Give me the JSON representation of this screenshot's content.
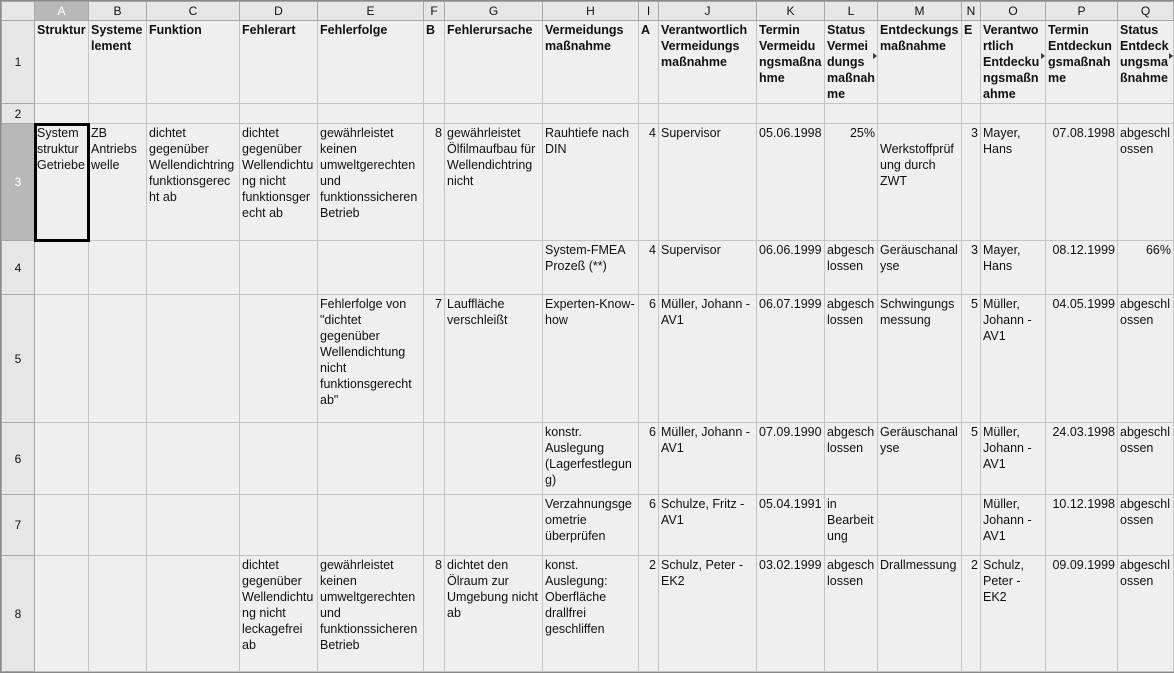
{
  "columns": [
    "A",
    "B",
    "C",
    "D",
    "E",
    "F",
    "G",
    "H",
    "I",
    "J",
    "K",
    "L",
    "M",
    "N",
    "O",
    "P",
    "Q"
  ],
  "row_numbers": [
    "1",
    "2",
    "3",
    "4",
    "5",
    "6",
    "7",
    "8"
  ],
  "selected_cell": "A3",
  "rows": [
    [
      "Struktur",
      "Systemelement",
      "Funktion",
      "Fehlerart",
      "Fehlerfolge",
      "B",
      "Fehlerursache",
      "Vermeidungs maßnahme",
      "A",
      "Verantwortlich Vermeidungs maßnahme",
      "Termin Vermeidungsmaßnahme",
      "Status Vermeidungsmaßnahme",
      "Entdeckungs maßnahme",
      "E",
      "Verantwortlich Entdeckungsmaßnahme",
      "Termin Entdeckungsmaßnahme",
      "Status Entdeckungsmaßnahme"
    ],
    [
      "",
      "",
      "",
      "",
      "",
      "",
      "",
      "",
      "",
      "",
      "",
      "",
      "",
      "",
      "",
      "",
      ""
    ],
    [
      "System struktur Getriebe",
      "ZB Antriebswelle",
      "dichtet gegenüber Wellendichtring funktionsgerecht ab",
      "dichtet gegenüber Wellendichtung nicht funktionsgerecht ab",
      "gewährleistet keinen umweltgerechten und funktionssicheren Betrieb",
      "8",
      "gewährleistet Ölfilmaufbau für Wellendichtring nicht",
      "Rauhtiefe nach DIN",
      "4",
      "Supervisor",
      "05.06.1998",
      "25%",
      "\nWerkstoffprüfung durch ZWT",
      "3",
      "Mayer, Hans",
      "07.08.1998",
      "abgeschlossen"
    ],
    [
      "",
      "",
      "",
      "",
      "",
      "",
      "",
      "System-FMEA Prozeß (**)",
      "4",
      "Supervisor",
      "06.06.1999",
      "abgeschlossen",
      "Geräuschanalyse",
      "3",
      "Mayer, Hans",
      "08.12.1999",
      "66%"
    ],
    [
      "",
      "",
      "",
      "",
      "Fehlerfolge von \"dichtet gegenüber Wellendichtung nicht funktionsgerecht ab\"",
      "7",
      "Lauffläche verschleißt",
      "Experten-Know-how",
      "6",
      "Müller, Johann - AV1",
      "06.07.1999",
      "abgeschlossen",
      "Schwingungs messung",
      "5",
      "Müller, Johann - AV1",
      "04.05.1999",
      "abgeschlossen"
    ],
    [
      "",
      "",
      "",
      "",
      "",
      "",
      "",
      "konstr. Auslegung (Lagerfestlegung)",
      "6",
      "Müller, Johann - AV1",
      "07.09.1990",
      "abgeschlossen",
      "Geräuschanalyse",
      "5",
      "Müller, Johann - AV1",
      "24.03.1998",
      "abgeschlossen"
    ],
    [
      "",
      "",
      "",
      "",
      "",
      "",
      "",
      "Verzahnungsgeometrie überprüfen",
      "6",
      "Schulze, Fritz - AV1",
      "05.04.1991",
      "in Bearbeitung",
      "",
      "",
      "Müller, Johann - AV1",
      "10.12.1998",
      "abgeschlossen"
    ],
    [
      "",
      "",
      "",
      "dichtet gegenüber Wellendichtung nicht leckagefrei ab",
      "gewährleistet keinen umweltgerechten und funktionssicheren Betrieb",
      "8",
      "dichtet den Ölraum zur Umgebung nicht ab",
      "konst. Auslegung: Oberfläche drallfrei geschliffen",
      "2",
      "Schulz, Peter - EK2",
      "03.02.1999",
      "abgeschlossen",
      "Drallmessung",
      "2",
      "Schulz, Peter - EK2",
      "09.09.1999",
      "abgeschlossen"
    ]
  ]
}
